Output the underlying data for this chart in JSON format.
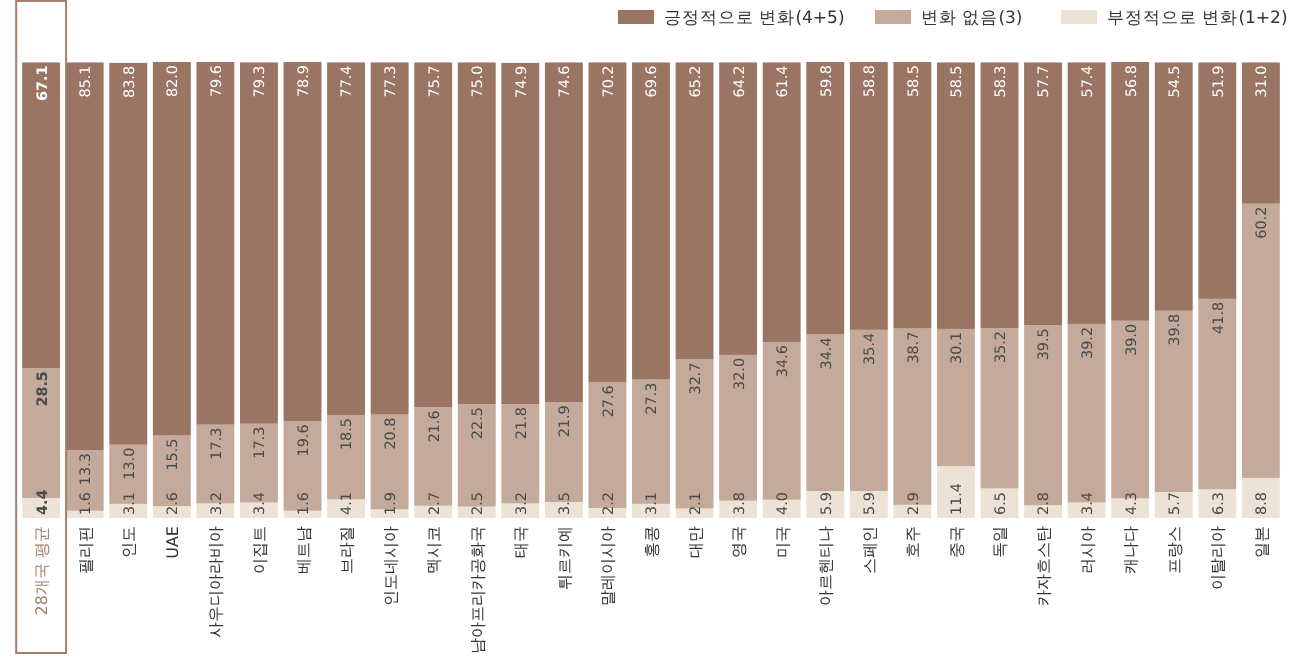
{
  "chart_data": {
    "type": "bar",
    "stacked": true,
    "legend": "top right",
    "categories": [
      "28개국 평균",
      "필리핀",
      "인도",
      "UAE",
      "사우디아라비아",
      "이집트",
      "베트남",
      "브라질",
      "인도네시아",
      "멕시코",
      "남아프리카공화국",
      "태국",
      "튀르키예",
      "말레이시아",
      "홍콩",
      "대만",
      "영국",
      "미국",
      "아르헨티나",
      "스페인",
      "호주",
      "중국",
      "독일",
      "카자흐스탄",
      "러시아",
      "캐나다",
      "프랑스",
      "이탈리아",
      "일본"
    ],
    "series": [
      {
        "name": "부정적으로 변화(1+2)",
        "color": "#ece3d6",
        "values": [
          4.4,
          1.6,
          3.1,
          2.6,
          3.2,
          3.4,
          1.6,
          4.1,
          1.9,
          2.7,
          2.5,
          3.2,
          3.5,
          2.2,
          3.1,
          2.1,
          3.8,
          4.0,
          5.9,
          5.9,
          2.9,
          11.4,
          6.5,
          2.8,
          3.4,
          4.3,
          5.7,
          6.3,
          8.8
        ],
        "value_labels": [
          "4.4",
          "1.6",
          "3.1",
          "2.6",
          "3.2",
          "3.4",
          "1.6",
          "4.1",
          "1.9",
          "2.7",
          "2.5",
          "3.2",
          "3.5",
          "2.2",
          "3.1",
          "2.1",
          "3.8",
          "4.0",
          "5.9",
          "5.9",
          "2.9",
          "11.4",
          "6.5",
          "2.8",
          "3.4",
          "4.3",
          "5.7",
          "6.3",
          "8.8"
        ]
      },
      {
        "name": "변화 없음(3)",
        "color": "#c3aa9a",
        "values": [
          28.5,
          13.3,
          13.0,
          15.5,
          17.3,
          17.3,
          19.6,
          18.5,
          20.8,
          21.6,
          22.5,
          21.8,
          21.9,
          27.6,
          27.3,
          32.7,
          32.0,
          34.6,
          34.4,
          35.4,
          38.7,
          30.1,
          35.2,
          39.5,
          39.2,
          39.0,
          39.8,
          41.8,
          60.2
        ],
        "value_labels": [
          "28.5",
          "13.3",
          "13.0",
          "15.5",
          "17.3",
          "17.3",
          "19.6",
          "18.5",
          "20.8",
          "21.6",
          "22.5",
          "21.8",
          "21.9",
          "27.6",
          "27.3",
          "32.7",
          "32.0",
          "34.6",
          "34.4",
          "35.4",
          "38.7",
          "30.1",
          "35.2",
          "39.5",
          "39.2",
          "39.0",
          "39.8",
          "41.8",
          "60.2"
        ]
      },
      {
        "name": "긍정적으로 변화(4+5)",
        "color": "#9b7563",
        "values": [
          67.1,
          85.1,
          83.8,
          82.0,
          79.6,
          79.3,
          78.9,
          77.4,
          77.3,
          75.7,
          75.0,
          74.9,
          74.6,
          70.2,
          69.6,
          65.2,
          64.2,
          61.4,
          59.8,
          58.8,
          58.5,
          58.5,
          58.3,
          57.7,
          57.4,
          56.8,
          54.5,
          51.9,
          31.0
        ],
        "value_labels": [
          "67.1",
          "85.1",
          "83.8",
          "82.0",
          "79.6",
          "79.3",
          "78.9",
          "77.4",
          "77.3",
          "75.7",
          "75.0",
          "74.9",
          "74.6",
          "70.2",
          "69.6",
          "65.2",
          "64.2",
          "61.4",
          "59.8",
          "58.8",
          "58.5",
          "58.5",
          "58.3",
          "57.7",
          "57.4",
          "56.8",
          "54.5",
          "51.9",
          "31.0"
        ]
      }
    ]
  }
}
